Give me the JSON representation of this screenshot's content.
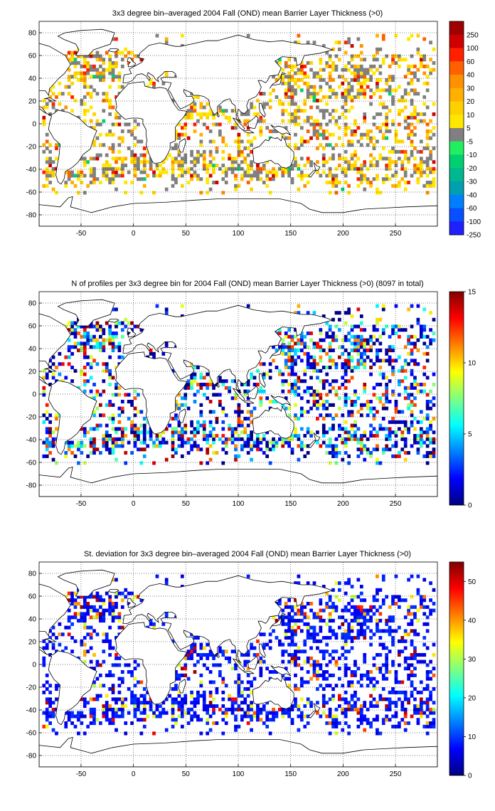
{
  "colormaps": {
    "blt_colors": [
      "#2020ff",
      "#0850ff",
      "#0080ff",
      "#00a0b0",
      "#00b890",
      "#00d070",
      "#20f060",
      "#808080",
      "#ffe800",
      "#ffd000",
      "#ffb000",
      "#ff9000",
      "#ff6000",
      "#ff2000",
      "#d00000",
      "#a00000"
    ],
    "jet_stops": [
      "#000080",
      "#0000ff",
      "#0080ff",
      "#00ffff",
      "#80ff80",
      "#ffff00",
      "#ff8000",
      "#ff0000",
      "#800000"
    ]
  },
  "chart_data": [
    {
      "type": "heatmap",
      "title": "3x3 degree bin–averaged 2004 Fall (OND) mean Barrier Layer Thickness (>0)",
      "xlabel": "",
      "ylabel": "",
      "xlim": [
        -90,
        290
      ],
      "ylim": [
        -90,
        90
      ],
      "xticks": [
        "-50",
        "0",
        "50",
        "100",
        "150",
        "200",
        "250"
      ],
      "yticks": [
        "80",
        "60",
        "40",
        "20",
        "0",
        "-20",
        "-40",
        "-60",
        "-80"
      ],
      "grid": true,
      "colorbar": {
        "type": "categorical",
        "labels": [
          "250",
          "100",
          "60",
          "40",
          "30",
          "20",
          "10",
          "5",
          "-5",
          "-10",
          "-20",
          "-30",
          "-40",
          "-60",
          "-100",
          "-250"
        ]
      },
      "bin_deg": 3
    },
    {
      "type": "heatmap",
      "title": "N of profiles per 3x3 degree bin for 2004 Fall (OND) mean Barrier Layer Thickness (>0) (8097 in total)",
      "xlabel": "",
      "ylabel": "",
      "xlim": [
        -90,
        290
      ],
      "ylim": [
        -90,
        90
      ],
      "xticks": [
        "-50",
        "0",
        "50",
        "100",
        "150",
        "200",
        "250"
      ],
      "yticks": [
        "80",
        "60",
        "40",
        "20",
        "0",
        "-20",
        "-40",
        "-60",
        "-80"
      ],
      "grid": true,
      "colorbar": {
        "type": "continuous",
        "min": 0,
        "max": 15,
        "ticks": [
          "15",
          "10",
          "5",
          "0"
        ]
      },
      "total_profiles": 8097,
      "bin_deg": 3
    },
    {
      "type": "heatmap",
      "title": "St. deviation for 3x3 degree bin–averaged 2004 Fall (OND) mean Barrier Layer Thickness (>0)",
      "xlabel": "",
      "ylabel": "",
      "xlim": [
        -90,
        290
      ],
      "ylim": [
        -90,
        90
      ],
      "xticks": [
        "-50",
        "0",
        "50",
        "100",
        "150",
        "200",
        "250"
      ],
      "yticks": [
        "80",
        "60",
        "40",
        "20",
        "0",
        "-20",
        "-40",
        "-60",
        "-80"
      ],
      "grid": true,
      "colorbar": {
        "type": "continuous",
        "min": 0,
        "max": 55,
        "ticks": [
          "50",
          "40",
          "30",
          "20",
          "10",
          "0"
        ]
      },
      "bin_deg": 3
    }
  ]
}
